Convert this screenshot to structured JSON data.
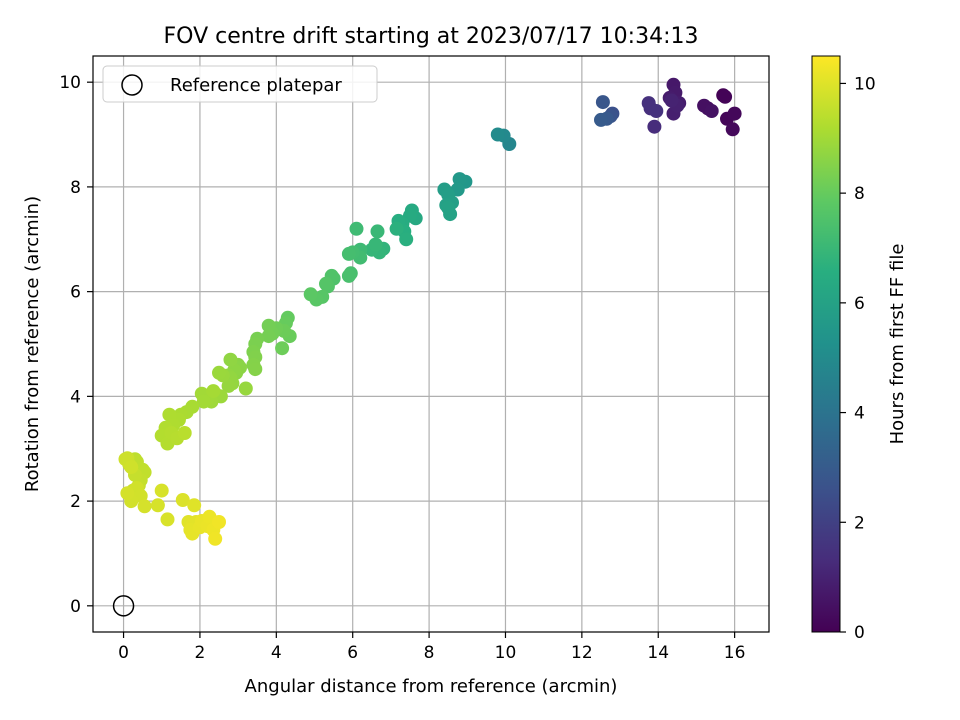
{
  "chart_data": {
    "type": "scatter",
    "title": "FOV centre drift starting at 2023/07/17 10:34:13",
    "xlabel": "Angular distance from reference (arcmin)",
    "ylabel": "Rotation from reference (arcmin)",
    "xlim": [
      -0.8,
      16.9
    ],
    "ylim": [
      -0.5,
      10.5
    ],
    "xticks": [
      0,
      2,
      4,
      6,
      8,
      10,
      12,
      14,
      16
    ],
    "yticks": [
      0,
      2,
      4,
      6,
      8,
      10
    ],
    "grid": true,
    "colormap": "viridis",
    "colorbar": {
      "label": "Hours from first FF file",
      "range": [
        0,
        10.5
      ],
      "ticks": [
        0,
        2,
        4,
        6,
        8,
        10
      ]
    },
    "legend": {
      "location": "upper-left",
      "entries": [
        "Reference platepar"
      ]
    },
    "reference_point": {
      "x": 0,
      "y": 0,
      "marker": "open-circle"
    },
    "columns": [
      "x",
      "y",
      "hours"
    ],
    "points": [
      [
        15.7,
        9.75,
        0.05
      ],
      [
        15.75,
        9.72,
        0.1
      ],
      [
        15.8,
        9.3,
        0.15
      ],
      [
        16.0,
        9.4,
        0.2
      ],
      [
        15.95,
        9.1,
        0.25
      ],
      [
        15.3,
        9.5,
        0.4
      ],
      [
        15.2,
        9.55,
        0.45
      ],
      [
        15.4,
        9.45,
        0.5
      ],
      [
        14.4,
        9.95,
        0.7
      ],
      [
        14.45,
        9.8,
        0.75
      ],
      [
        14.3,
        9.7,
        0.8
      ],
      [
        14.55,
        9.6,
        0.85
      ],
      [
        14.4,
        9.4,
        0.9
      ],
      [
        14.5,
        9.55,
        0.95
      ],
      [
        14.35,
        9.65,
        1.0
      ],
      [
        13.9,
        9.15,
        1.3
      ],
      [
        13.8,
        9.5,
        1.4
      ],
      [
        13.75,
        9.6,
        1.45
      ],
      [
        13.95,
        9.45,
        1.5
      ],
      [
        12.8,
        9.4,
        2.6
      ],
      [
        12.75,
        9.35,
        2.7
      ],
      [
        12.55,
        9.62,
        2.8
      ],
      [
        12.65,
        9.3,
        2.9
      ],
      [
        12.5,
        9.28,
        3.0
      ],
      [
        10.1,
        8.82,
        4.8
      ],
      [
        9.95,
        8.98,
        4.9
      ],
      [
        9.8,
        9.0,
        5.0
      ],
      [
        8.95,
        8.1,
        5.5
      ],
      [
        8.8,
        8.15,
        5.55
      ],
      [
        8.75,
        7.95,
        5.6
      ],
      [
        8.4,
        7.95,
        5.8
      ],
      [
        8.5,
        7.85,
        5.85
      ],
      [
        8.6,
        7.7,
        5.9
      ],
      [
        8.45,
        7.65,
        5.95
      ],
      [
        8.55,
        7.48,
        6.0
      ],
      [
        8.5,
        7.6,
        6.02
      ],
      [
        7.65,
        7.4,
        6.3
      ],
      [
        7.55,
        7.55,
        6.35
      ],
      [
        7.5,
        7.45,
        6.4
      ],
      [
        7.3,
        7.3,
        6.45
      ],
      [
        7.2,
        7.35,
        6.5
      ],
      [
        7.35,
        7.15,
        6.55
      ],
      [
        7.4,
        7.0,
        6.6
      ],
      [
        7.15,
        7.2,
        6.65
      ],
      [
        6.8,
        6.82,
        6.8
      ],
      [
        6.7,
        6.75,
        6.85
      ],
      [
        6.5,
        6.8,
        6.9
      ],
      [
        6.6,
        6.9,
        6.95
      ],
      [
        6.65,
        7.15,
        7.0
      ],
      [
        6.2,
        6.8,
        7.1
      ],
      [
        6.1,
        7.2,
        7.15
      ],
      [
        6.2,
        6.65,
        7.2
      ],
      [
        6.0,
        6.75,
        7.25
      ],
      [
        5.9,
        6.72,
        7.3
      ],
      [
        5.95,
        6.35,
        7.35
      ],
      [
        5.9,
        6.3,
        7.4
      ],
      [
        5.5,
        6.25,
        7.5
      ],
      [
        5.45,
        6.3,
        7.55
      ],
      [
        5.35,
        6.1,
        7.6
      ],
      [
        5.3,
        6.15,
        7.65
      ],
      [
        5.2,
        5.9,
        7.7
      ],
      [
        5.05,
        5.85,
        7.75
      ],
      [
        4.9,
        5.95,
        7.8
      ],
      [
        4.3,
        5.5,
        7.95
      ],
      [
        4.25,
        5.4,
        8.0
      ],
      [
        4.35,
        5.15,
        8.05
      ],
      [
        4.2,
        5.25,
        8.1
      ],
      [
        4.15,
        4.92,
        8.12
      ],
      [
        4.0,
        5.3,
        8.15
      ],
      [
        3.9,
        5.2,
        8.2
      ],
      [
        3.8,
        5.35,
        8.22
      ],
      [
        3.8,
        5.15,
        8.25
      ],
      [
        3.5,
        5.1,
        8.3
      ],
      [
        3.45,
        5.0,
        8.35
      ],
      [
        3.4,
        4.85,
        8.4
      ],
      [
        3.45,
        4.75,
        8.45
      ],
      [
        3.4,
        4.6,
        8.5
      ],
      [
        3.45,
        4.52,
        8.52
      ],
      [
        3.0,
        4.6,
        8.6
      ],
      [
        3.05,
        4.55,
        8.62
      ],
      [
        2.95,
        4.45,
        8.65
      ],
      [
        2.9,
        4.5,
        8.68
      ],
      [
        2.8,
        4.7,
        8.7
      ],
      [
        2.75,
        4.4,
        8.72
      ],
      [
        2.8,
        4.35,
        8.75
      ],
      [
        2.85,
        4.25,
        8.78
      ],
      [
        2.75,
        4.2,
        8.8
      ],
      [
        3.2,
        4.15,
        8.82
      ],
      [
        2.6,
        4.4,
        8.85
      ],
      [
        2.5,
        4.45,
        8.88
      ],
      [
        2.55,
        4.0,
        8.9
      ],
      [
        2.4,
        4.05,
        8.92
      ],
      [
        2.3,
        3.9,
        8.95
      ],
      [
        2.2,
        3.95,
        8.98
      ],
      [
        2.05,
        4.05,
        9.0
      ],
      [
        2.1,
        3.9,
        9.02
      ],
      [
        2.35,
        4.1,
        9.05
      ],
      [
        1.8,
        3.8,
        9.1
      ],
      [
        1.65,
        3.7,
        9.12
      ],
      [
        1.5,
        3.65,
        9.15
      ],
      [
        1.45,
        3.55,
        9.18
      ],
      [
        1.2,
        3.65,
        9.2
      ],
      [
        1.3,
        3.45,
        9.22
      ],
      [
        1.1,
        3.4,
        9.25
      ],
      [
        1.0,
        3.25,
        9.28
      ],
      [
        1.15,
        3.1,
        9.3
      ],
      [
        1.25,
        3.3,
        9.32
      ],
      [
        1.4,
        3.2,
        9.35
      ],
      [
        1.6,
        3.3,
        9.38
      ],
      [
        0.3,
        2.8,
        9.45
      ],
      [
        0.35,
        2.75,
        9.48
      ],
      [
        0.5,
        2.6,
        9.5
      ],
      [
        0.55,
        2.55,
        9.52
      ],
      [
        0.45,
        2.4,
        9.55
      ],
      [
        0.4,
        2.3,
        9.58
      ],
      [
        0.3,
        2.5,
        9.6
      ],
      [
        0.25,
        2.2,
        9.62
      ],
      [
        0.2,
        2.1,
        9.65
      ],
      [
        0.15,
        2.7,
        9.68
      ],
      [
        0.1,
        2.82,
        9.7
      ],
      [
        0.05,
        2.8,
        9.72
      ],
      [
        0.2,
        2.65,
        9.74
      ],
      [
        0.35,
        2.25,
        9.76
      ],
      [
        0.45,
        2.1,
        9.78
      ],
      [
        0.2,
        2.0,
        9.8
      ],
      [
        0.1,
        2.15,
        9.82
      ],
      [
        0.55,
        1.9,
        9.84
      ],
      [
        0.9,
        1.92,
        9.86
      ],
      [
        1.0,
        2.2,
        9.88
      ],
      [
        1.15,
        1.65,
        9.9
      ],
      [
        1.55,
        2.02,
        9.95
      ],
      [
        1.85,
        1.92,
        10.0
      ],
      [
        1.7,
        1.6,
        10.02
      ],
      [
        1.8,
        1.55,
        10.05
      ],
      [
        1.9,
        1.6,
        10.08
      ],
      [
        1.75,
        1.45,
        10.1
      ],
      [
        1.8,
        1.38,
        10.12
      ],
      [
        2.0,
        1.5,
        10.15
      ],
      [
        2.05,
        1.62,
        10.18
      ],
      [
        2.2,
        1.52,
        10.2
      ],
      [
        2.25,
        1.7,
        10.22
      ],
      [
        2.35,
        1.45,
        10.25
      ],
      [
        2.4,
        1.28,
        10.28
      ],
      [
        2.5,
        1.6,
        10.3
      ]
    ]
  }
}
